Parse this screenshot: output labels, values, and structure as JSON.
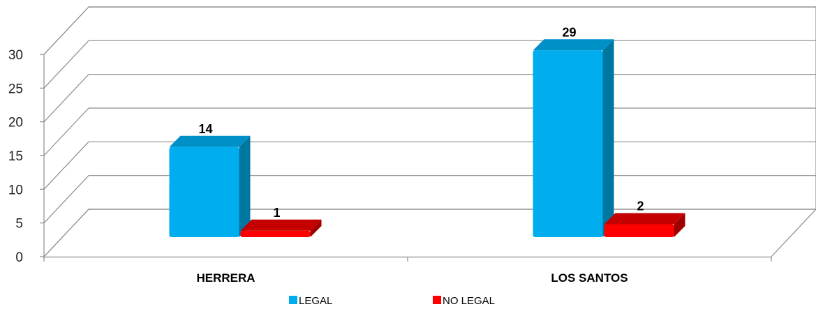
{
  "chart_data": {
    "type": "bar",
    "categories": [
      "HERRERA",
      "LOS SANTOS"
    ],
    "series": [
      {
        "name": "LEGAL",
        "values": [
          14,
          29
        ],
        "color": "#00AEEF",
        "side_color": "#0077A0",
        "top_color": "#0090C8"
      },
      {
        "name": "NO LEGAL",
        "values": [
          1,
          2
        ],
        "color": "#FF0000",
        "side_color": "#A00000",
        "top_color": "#C40000"
      }
    ],
    "title": "",
    "xlabel": "",
    "ylabel": "",
    "ylim": [
      0,
      30
    ],
    "yticks": [
      0,
      5,
      10,
      15,
      20,
      25,
      30
    ],
    "grid": true,
    "legend_position": "bottom",
    "style": "3d-column"
  }
}
